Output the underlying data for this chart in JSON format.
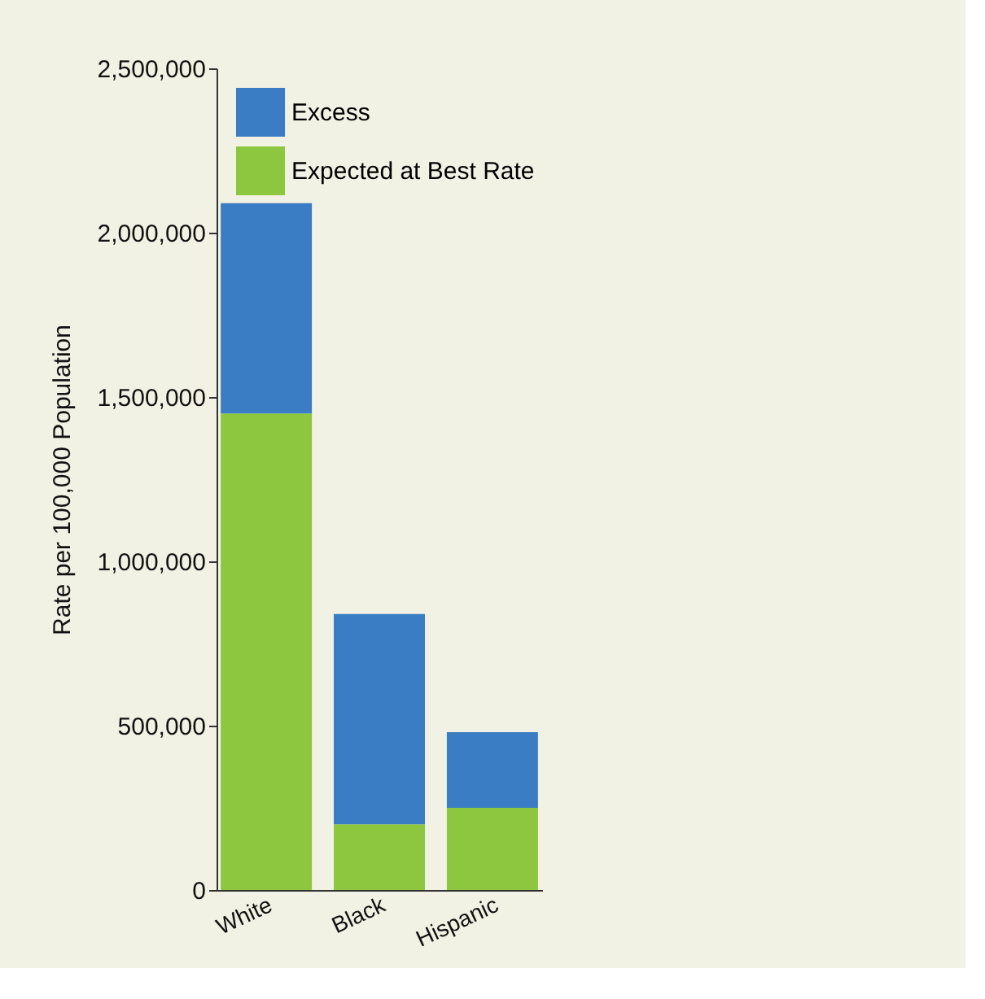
{
  "chart_data": {
    "type": "bar",
    "stacked": true,
    "ylabel": "Rate per 100,000 Population",
    "categories": [
      "White",
      "Black",
      "Hispanic"
    ],
    "series": [
      {
        "name": "Expected at Best Rate",
        "color": "#8dc63f",
        "values": [
          1450000,
          200000,
          250000
        ]
      },
      {
        "name": "Excess",
        "color": "#3b7dc4",
        "values": [
          640000,
          640000,
          230000
        ]
      }
    ],
    "ylim": [
      0,
      2500000
    ],
    "yticks": [
      0,
      {
        "value": 500000,
        "label": "500,000"
      },
      {
        "value": 1000000,
        "label": "1,000,000"
      },
      {
        "value": 1500000,
        "label": "1,500,000"
      },
      {
        "value": 2000000,
        "label": "2,000,000"
      },
      {
        "value": 2500000,
        "label": "2,500,000"
      }
    ],
    "grid": false,
    "legend": "top left"
  }
}
